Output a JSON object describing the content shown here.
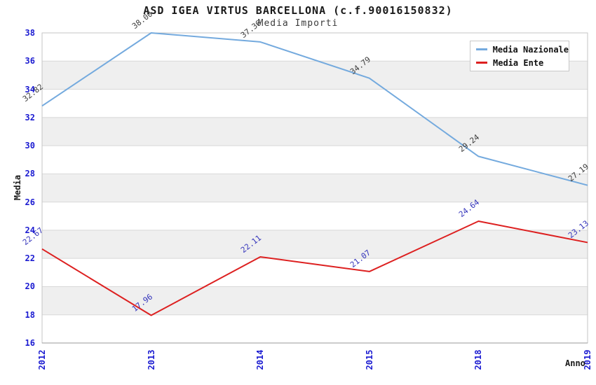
{
  "title": "ASD IGEA VIRTUS BARCELLONA (c.f.90016150832)",
  "subtitle": "Media Importi",
  "colors": {
    "axis_tick_label": "#1b1bd1",
    "grid_band": "#efefef",
    "gridline": "#d8d8d8",
    "plot_border": "#c6c6c6",
    "bottom_axis": "#999999",
    "title_text": "#1a1a1a",
    "subtitle_text": "#3c3c3c"
  },
  "chart_data": {
    "type": "line",
    "x": [
      "2012",
      "2013",
      "2014",
      "2015",
      "2018",
      "2019"
    ],
    "series": [
      {
        "name": "Media Nazionale",
        "color": "#74aade",
        "label_color": "#3c3c3c",
        "values": [
          32.82,
          38.0,
          37.36,
          34.79,
          29.24,
          27.19
        ]
      },
      {
        "name": "Media Ente",
        "color": "#dd2020",
        "label_color": "#3333bb",
        "values": [
          22.67,
          17.96,
          22.11,
          21.07,
          24.64,
          23.13
        ]
      }
    ],
    "xlabel": "Anno",
    "ylabel": "Media",
    "ylim": [
      16,
      38
    ],
    "ytick_step": 2,
    "value_label_decimals": 2,
    "legend_position": "upper right",
    "grid": "horizontal alternating bands"
  }
}
